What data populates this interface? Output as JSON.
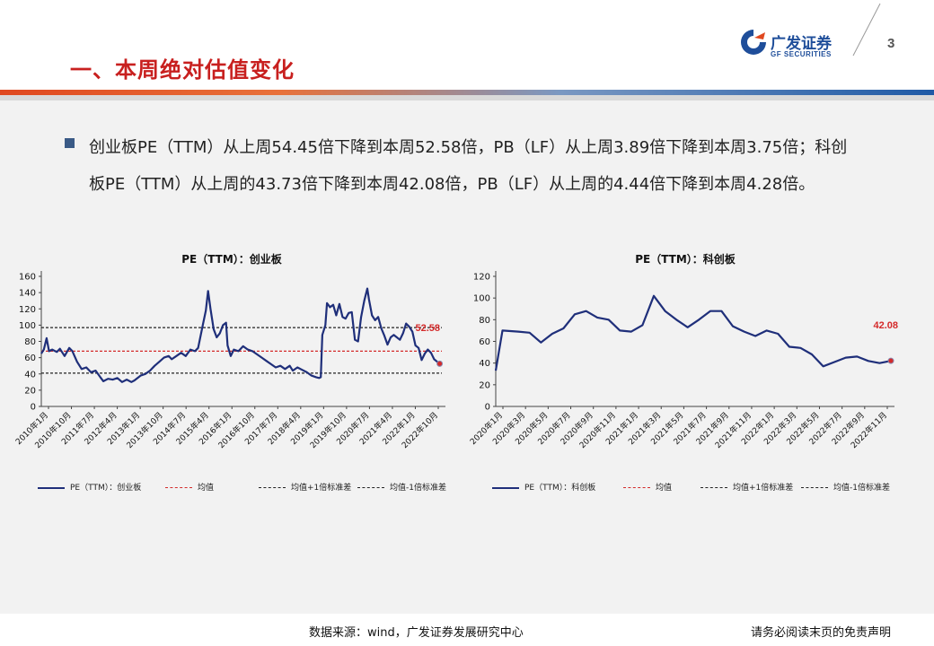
{
  "header": {
    "title": "一、本周绝对估值变化",
    "page_number": "3",
    "logo": {
      "name": "广发证券",
      "en": "GF SECURITIES"
    }
  },
  "summary": {
    "text": "创业板PE（TTM）从上周54.45倍下降到本周52.58倍，PB（LF）从上周3.89倍下降到本周3.75倍；科创板PE（TTM）从上周的43.73倍下降到本周42.08倍，PB（LF）从上周的4.44倍下降到本周4.28倍。"
  },
  "colors": {
    "series": "#1f2f7a",
    "mean": "#d42a2a",
    "band": "#222222",
    "accent": "#c8201f"
  },
  "chart_data": [
    {
      "type": "line",
      "title": "PE（TTM）：创业板",
      "ylim": [
        0,
        160
      ],
      "yticks": [
        0,
        20,
        40,
        60,
        80,
        100,
        120,
        140,
        160
      ],
      "x_ticks": [
        "2010年1月",
        "2010年10月",
        "2011年7月",
        "2012年4月",
        "2013年1月",
        "2013年10月",
        "2014年7月",
        "2015年4月",
        "2016年1月",
        "2016年10月",
        "2017年7月",
        "2018年4月",
        "2019年1月",
        "2019年10月",
        "2020年7月",
        "2021年4月",
        "2022年1月",
        "2022年10月"
      ],
      "x_range": [
        2010.0,
        2022.9
      ],
      "grid": false,
      "legend_position": "bottom",
      "series": [
        {
          "name": "PE（TTM）：创业板",
          "x": [
            2010.0,
            2010.08,
            2010.17,
            2010.25,
            2010.35,
            2010.5,
            2010.6,
            2010.75,
            2010.9,
            2011.0,
            2011.15,
            2011.3,
            2011.45,
            2011.6,
            2011.75,
            2011.9,
            2012.0,
            2012.15,
            2012.3,
            2012.45,
            2012.6,
            2012.75,
            2012.9,
            2013.0,
            2013.2,
            2013.35,
            2013.5,
            2013.65,
            2013.8,
            2013.95,
            2014.1,
            2014.2,
            2014.35,
            2014.5,
            2014.65,
            2014.8,
            2014.95,
            2015.05,
            2015.2,
            2015.3,
            2015.37,
            2015.45,
            2015.55,
            2015.65,
            2015.75,
            2015.85,
            2015.95,
            2016.0,
            2016.1,
            2016.2,
            2016.35,
            2016.5,
            2016.65,
            2016.8,
            2016.95,
            2017.1,
            2017.25,
            2017.4,
            2017.55,
            2017.7,
            2017.85,
            2018.0,
            2018.1,
            2018.25,
            2018.4,
            2018.55,
            2018.7,
            2018.85,
            2018.95,
            2019.0,
            2019.05,
            2019.15,
            2019.2,
            2019.3,
            2019.4,
            2019.5,
            2019.6,
            2019.7,
            2019.8,
            2019.9,
            2020.0,
            2020.1,
            2020.2,
            2020.3,
            2020.4,
            2020.5,
            2020.55,
            2020.65,
            2020.75,
            2020.85,
            2020.95,
            2021.05,
            2021.15,
            2021.25,
            2021.35,
            2021.45,
            2021.55,
            2021.65,
            2021.75,
            2021.85,
            2021.95,
            2022.05,
            2022.15,
            2022.25,
            2022.35,
            2022.45,
            2022.55,
            2022.65,
            2022.75,
            2022.83
          ],
          "y": [
            65,
            70,
            84,
            68,
            70,
            67,
            71,
            62,
            72,
            68,
            55,
            46,
            48,
            42,
            44,
            36,
            31,
            34,
            33,
            35,
            30,
            33,
            30,
            32,
            38,
            40,
            44,
            50,
            55,
            60,
            62,
            58,
            62,
            66,
            62,
            70,
            68,
            72,
            100,
            118,
            142,
            120,
            95,
            85,
            90,
            100,
            103,
            75,
            62,
            70,
            68,
            74,
            70,
            68,
            64,
            60,
            56,
            52,
            48,
            50,
            46,
            50,
            44,
            48,
            45,
            42,
            38,
            36,
            35,
            36,
            88,
            100,
            127,
            122,
            125,
            112,
            126,
            110,
            108,
            115,
            116,
            82,
            80,
            110,
            130,
            145,
            132,
            112,
            106,
            110,
            96,
            87,
            76,
            85,
            88,
            85,
            82,
            90,
            102,
            98,
            92,
            75,
            72,
            57,
            65,
            70,
            66,
            58,
            55,
            52.58
          ]
        }
      ],
      "mean": 68,
      "mean_plus_1sd": 97,
      "mean_minus_1sd": 41,
      "last_value_label": "52.58",
      "legend": [
        "PE（TTM）：创业板",
        "均值",
        "均值+1倍标准差",
        "均值-1倍标准差"
      ]
    },
    {
      "type": "line",
      "title": "PE（TTM）：科创板",
      "ylim": [
        0,
        120
      ],
      "yticks": [
        0,
        20,
        40,
        60,
        80,
        100,
        120
      ],
      "x_ticks": [
        "2020年1月",
        "2020年3月",
        "2020年5月",
        "2020年7月",
        "2020年9月",
        "2020年11月",
        "2021年1月",
        "2021年3月",
        "2021年5月",
        "2021年7月",
        "2021年9月",
        "2021年11月",
        "2022年1月",
        "2022年3月",
        "2022年5月",
        "2022年7月",
        "2022年9月",
        "2022年11月"
      ],
      "x_range": [
        0,
        35
      ],
      "grid": false,
      "legend_position": "bottom",
      "series": [
        {
          "name": "PE（TTM）：科创板",
          "x": [
            0,
            0.6,
            2,
            3,
            4,
            5,
            6,
            7,
            8,
            9,
            10,
            11,
            12,
            13,
            14,
            15,
            16,
            17,
            18,
            19,
            20,
            21,
            22,
            23,
            24,
            25,
            26,
            27,
            28,
            29,
            30,
            31,
            32,
            33,
            34,
            35
          ],
          "y": [
            33,
            70,
            69,
            68,
            59,
            67,
            72,
            85,
            88,
            82,
            80,
            70,
            69,
            75,
            102,
            88,
            80,
            73,
            80,
            88,
            88,
            74,
            69,
            65,
            70,
            67,
            55,
            54,
            48,
            37,
            41,
            45,
            46,
            42,
            40,
            42.08
          ]
        }
      ],
      "mean": null,
      "mean_plus_1sd": null,
      "mean_minus_1sd": null,
      "last_value_label": "42.08",
      "legend": [
        "PE（TTM）：科创板",
        "均值",
        "均值+1倍标准差",
        "均值-1倍标准差"
      ]
    }
  ],
  "footer": {
    "source": "数据来源：wind，广发证券发展研究中心",
    "disclaimer": "请务必阅读末页的免责声明"
  }
}
